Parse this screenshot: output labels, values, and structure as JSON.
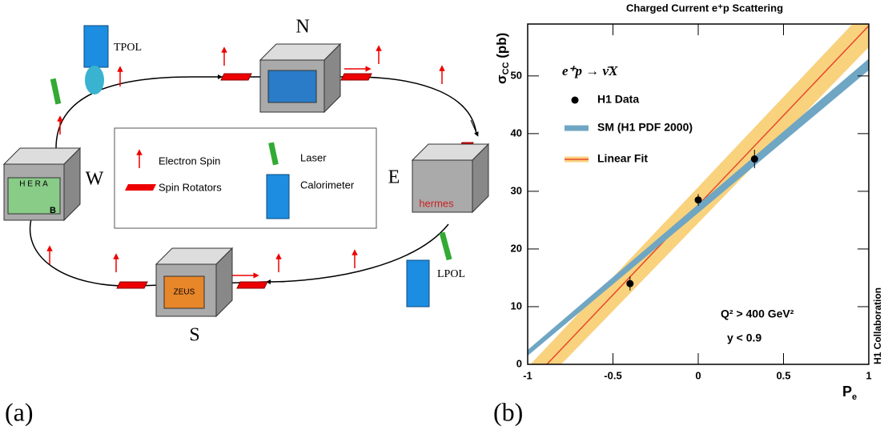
{
  "diagram": {
    "ring_labels": {
      "north": "N",
      "west": "W",
      "east": "E",
      "south": "S"
    },
    "polarimeters": {
      "transverse": "TPOL",
      "longitudinal": "LPOL"
    },
    "box_labels": {
      "hera": "H E R A",
      "hera_b": "B",
      "zeus": "ZEUS",
      "hermes": "hermes"
    },
    "legend": {
      "electron_spin": "Electron Spin",
      "spin_rotators": "Spin Rotators",
      "laser": "Laser",
      "calorimeter": "Calorimeter"
    },
    "panel_label": "(a)"
  },
  "chart_data": {
    "type": "scatter",
    "title": "Charged Current e⁺p Scattering",
    "y_label": {
      "symbol": "σ",
      "subscript": "CC",
      "unit": " (pb)"
    },
    "x_label": {
      "symbol": "P",
      "subscript": "e"
    },
    "xlim": [
      -1,
      1
    ],
    "ylim": [
      0,
      59
    ],
    "xticks": [
      -1,
      -0.5,
      0,
      0.5,
      1
    ],
    "yticks": [
      0,
      10,
      20,
      30,
      40,
      50
    ],
    "reaction": "e⁺p → ν̄X",
    "annotations": {
      "q2": "Q² > 400 GeV²",
      "y_cut": "y < 0.9",
      "collaboration": "H1 Collaboration"
    },
    "panel_label": "(b)",
    "series": [
      {
        "name": "H1 Data",
        "type": "errorbar",
        "color": "#000000",
        "x": [
          -0.4,
          0,
          0.33
        ],
        "values": [
          14,
          28.5,
          35.6
        ],
        "errors": [
          1.2,
          1,
          1.6
        ]
      },
      {
        "name": "SM (H1 PDF 2000)",
        "type": "band",
        "color": "#6fa6c3",
        "line_color": "#6fa6c3",
        "x": [
          -1,
          1
        ],
        "values": [
          2,
          52
        ],
        "lower": [
          1.5,
          51
        ],
        "upper": [
          2.5,
          53
        ]
      },
      {
        "name": "Linear Fit",
        "type": "band",
        "color": "#f9d27e",
        "line_color": "#e8492a",
        "x": [
          -1,
          1
        ],
        "values": [
          -3.5,
          58.7
        ],
        "lower": [
          -6,
          55
        ],
        "upper": [
          -0.5,
          62
        ]
      }
    ]
  }
}
